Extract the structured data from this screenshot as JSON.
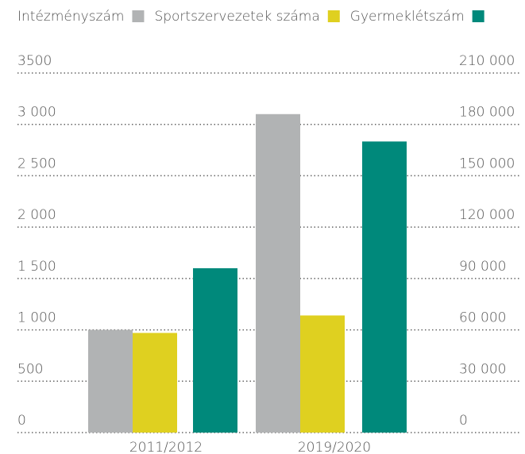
{
  "chart_data": {
    "type": "bar",
    "categories": [
      "2011/2012",
      "2019/2020"
    ],
    "series": [
      {
        "name": "Intézményszám",
        "color": "#b1b3b4",
        "values": [
          1000,
          3100
        ]
      },
      {
        "name": "Sportszervezetek száma",
        "color": "#dfd020",
        "values": [
          970,
          1140
        ]
      },
      {
        "name": "Gyermeklétszám",
        "color": "#00897b",
        "axis": "y2",
        "values": [
          96000,
          170000
        ]
      }
    ],
    "ylim": [
      0,
      3500
    ],
    "yticks": [
      0,
      500,
      {
        "value": 1000,
        "label": "1 000"
      },
      {
        "value": 1500,
        "label": "1 500"
      },
      {
        "value": 2000,
        "label": "2 000"
      },
      {
        "value": 2500,
        "label": "2 500"
      },
      {
        "value": 3000,
        "label": "3 000"
      },
      3500
    ],
    "y2lim": [
      0,
      210000
    ],
    "y2ticks": [
      0,
      {
        "value": 30000,
        "label": "30 000"
      },
      {
        "value": 60000,
        "label": "60 000"
      },
      {
        "value": 90000,
        "label": "90 000"
      },
      {
        "value": 120000,
        "label": "120 000"
      },
      {
        "value": 150000,
        "label": "150 000"
      },
      {
        "value": 180000,
        "label": "180 000"
      },
      {
        "value": 210000,
        "label": "210 000"
      }
    ],
    "grid": true,
    "legend": "top"
  }
}
